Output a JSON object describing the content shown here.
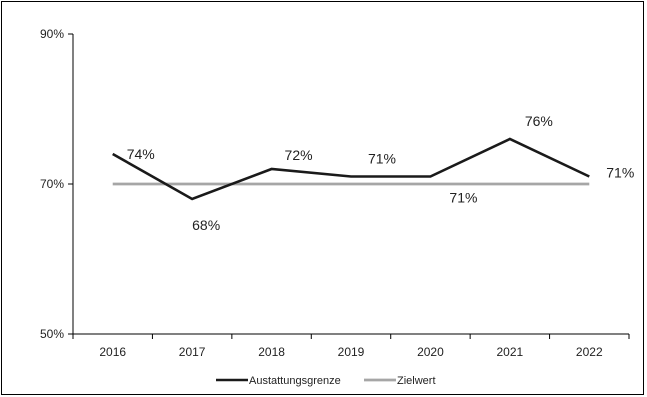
{
  "chart_data": {
    "type": "line",
    "title": "",
    "xlabel": "",
    "ylabel": "",
    "categories": [
      "2016",
      "2017",
      "2018",
      "2019",
      "2020",
      "2021",
      "2022"
    ],
    "ylim": [
      50,
      90
    ],
    "yticks": [
      50,
      70,
      90
    ],
    "ytick_labels": [
      "50%",
      "70%",
      "90%"
    ],
    "grid": false,
    "legend_position": "bottom",
    "series": [
      {
        "name": "Austattungsgrenze",
        "values": [
          74,
          68,
          72,
          71,
          71,
          76,
          71
        ],
        "labels": [
          "74%",
          "68%",
          "72%",
          "71%",
          "71%",
          "76%",
          "71%"
        ],
        "color": "#1a1a1a"
      },
      {
        "name": "Zielwert",
        "values": [
          70,
          70,
          70,
          70,
          70,
          70,
          70
        ],
        "color": "#a6a6a6"
      }
    ]
  }
}
